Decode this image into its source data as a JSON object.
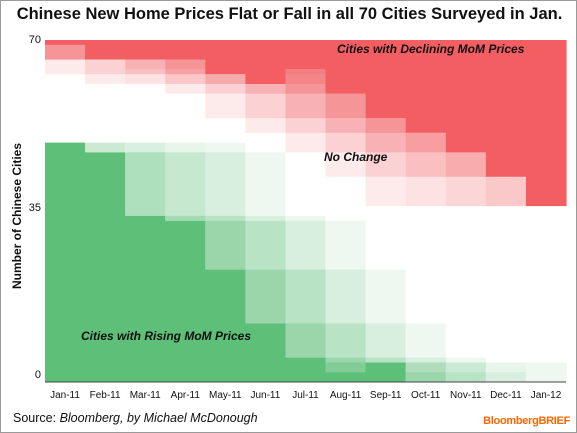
{
  "chart_data": {
    "type": "area",
    "title": "Chinese New Home Prices Flat or Fall in all 70 Cities Surveyed in Jan.",
    "ylabel": "Number of Chinese Cities",
    "xlabel": "",
    "ylim": [
      0,
      70
    ],
    "y_ticks": [
      "0",
      "35",
      "70"
    ],
    "categories": [
      "Jan-11",
      "Feb-11",
      "Mar-11",
      "Apr-11",
      "May-11",
      "Jun-11",
      "Jul-11",
      "Aug-11",
      "Sep-11",
      "Oct-11",
      "Nov-11",
      "Dec-11",
      "Jan-12"
    ],
    "grid": false,
    "series": [
      {
        "name": "Cities with Rising MoM Prices",
        "color": "#5dbf78",
        "values": [
          49,
          47,
          34,
          33,
          23,
          12,
          5,
          2,
          4,
          0,
          0,
          0,
          0
        ]
      },
      {
        "name": "No Change",
        "color": "#ffffff",
        "values": [
          20,
          19,
          32,
          33,
          40,
          49,
          59,
          57,
          50,
          51,
          47,
          42,
          36
        ]
      },
      {
        "name": "Cities with Declining MoM Prices",
        "color": "#f25e62",
        "values": [
          1,
          4,
          4,
          4,
          7,
          9,
          6,
          11,
          16,
          19,
          23,
          28,
          34
        ]
      }
    ],
    "annotations": {
      "rising": "Cities with Rising MoM Prices",
      "no_change": "No Change",
      "declining": "Cities with Declining MoM Prices"
    }
  },
  "source": {
    "prefix": "Source: ",
    "text": "Bloomberg, by Michael McDonough"
  },
  "brand": {
    "name": "BloombergBRIEF"
  }
}
